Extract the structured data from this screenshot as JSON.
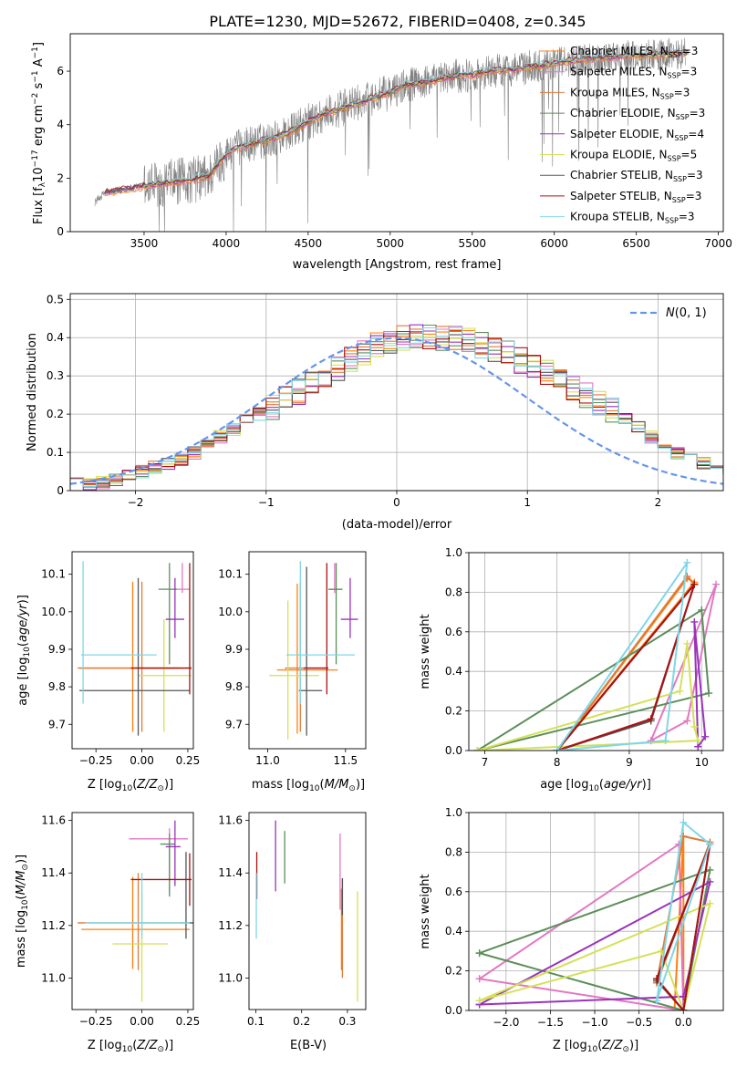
{
  "title": "PLATE=1230, MJD=52672, FIBERID=0408, z=0.345",
  "colors": {
    "data": "#808080",
    "normal_curve": "#6495ED",
    "grid": "#b0b0b0",
    "models": [
      "#ff7f0e",
      "#e377c2",
      "#e07b39",
      "#5b8f5b",
      "#9933bb",
      "#d4e157",
      "#555555",
      "#aa1111",
      "#7fd6e8"
    ]
  },
  "chart_data": [
    {
      "id": "spectrum",
      "type": "line",
      "xlabel": "wavelength [Angstrom, rest frame]",
      "ylabel": "Flux [f_λ10^{-17} erg cm^{-2} s^{-1} A^{-1}]",
      "xlim": [
        3050,
        7030
      ],
      "ylim": [
        0,
        7.4
      ],
      "xticks": [
        3500,
        4000,
        4500,
        5000,
        5500,
        6000,
        6500,
        7000
      ],
      "yticks": [
        0,
        2,
        4,
        6
      ],
      "grid": false,
      "legend": "top-right",
      "data_series": {
        "name": "data",
        "x_range": [
          3200,
          6800
        ]
      },
      "continuum": {
        "x": [
          3200,
          3260,
          3300,
          3400,
          3500,
          3600,
          3700,
          3800,
          3850,
          3900,
          3950,
          4000,
          4100,
          4200,
          4300,
          4400,
          4500,
          4600,
          4700,
          4800,
          4900,
          5000,
          5100,
          5200,
          5300,
          5400,
          5500,
          5600,
          5700,
          5800,
          5900,
          6000,
          6200,
          6400,
          6600,
          6800
        ],
        "y": [
          1.1,
          1.45,
          1.5,
          1.6,
          1.7,
          1.8,
          1.85,
          1.95,
          2.0,
          2.1,
          2.5,
          2.9,
          3.2,
          3.35,
          3.5,
          3.75,
          4.1,
          4.4,
          4.6,
          4.8,
          5.0,
          5.2,
          5.5,
          5.55,
          5.7,
          5.8,
          5.85,
          6.0,
          6.05,
          6.1,
          6.2,
          6.3,
          6.45,
          6.55,
          6.6,
          6.7
        ]
      },
      "series": [
        {
          "name": "Chabrier MILES",
          "n_ssp": "3"
        },
        {
          "name": "Salpeter MILES",
          "n_ssp": "3"
        },
        {
          "name": "Kroupa MILES",
          "n_ssp": "3"
        },
        {
          "name": "Chabrier ELODIE",
          "n_ssp": "3"
        },
        {
          "name": "Salpeter ELODIE",
          "n_ssp": "4"
        },
        {
          "name": "Kroupa ELODIE",
          "n_ssp": "5"
        },
        {
          "name": "Chabrier STELIB",
          "n_ssp": "3"
        },
        {
          "name": "Salpeter STELIB",
          "n_ssp": "3"
        },
        {
          "name": "Kroupa STELIB",
          "n_ssp": "3"
        }
      ]
    },
    {
      "id": "residuals",
      "type": "line",
      "xlabel": "(data-model)/error",
      "ylabel": "Normed distribution",
      "xlim": [
        -2.5,
        2.5
      ],
      "ylim": [
        0,
        0.515
      ],
      "xticks": [
        -2,
        -1,
        0,
        1,
        2
      ],
      "yticks": [
        0.0,
        0.1,
        0.2,
        0.3,
        0.4,
        0.5
      ],
      "grid": true,
      "legend": "top-right",
      "curve_label": "N(0,1)",
      "bin_width": 0.1,
      "hist_x_start": -2.5,
      "hist_base": [
        0.03,
        0.02,
        0.02,
        0.03,
        0.04,
        0.05,
        0.06,
        0.07,
        0.08,
        0.1,
        0.12,
        0.14,
        0.16,
        0.18,
        0.2,
        0.22,
        0.24,
        0.26,
        0.28,
        0.3,
        0.32,
        0.34,
        0.36,
        0.38,
        0.39,
        0.4,
        0.4,
        0.4,
        0.4,
        0.4,
        0.39,
        0.38,
        0.37,
        0.36,
        0.34,
        0.33,
        0.31,
        0.29,
        0.27,
        0.25,
        0.23,
        0.21,
        0.19,
        0.17,
        0.14,
        0.12,
        0.1,
        0.08,
        0.07,
        0.06,
        0.05,
        0.04,
        0.04,
        0.03,
        0.03,
        0.02,
        0.02
      ]
    },
    {
      "id": "age-vs-z",
      "type": "scatter",
      "xlabel": "Z [log10(Z/Z☉)]",
      "ylabel": "age  [log10(age/yr)]",
      "xlim": [
        -0.38,
        0.28
      ],
      "ylim": [
        9.635,
        10.16
      ],
      "xticks": [
        -0.25,
        0.0,
        0.25
      ],
      "yticks": [
        9.7,
        9.8,
        9.9,
        10.0,
        10.1
      ],
      "points": [
        {
          "x": -0.05,
          "y": 9.85,
          "xerr": [
            0.3,
            0.26
          ],
          "yerr": [
            0.17,
            0.23
          ]
        },
        {
          "x": 0.22,
          "y": 10.06,
          "xerr": [
            0.05,
            0.04
          ],
          "yerr": [
            0.01,
            0.07
          ]
        },
        {
          "x": 0.0,
          "y": 9.85,
          "xerr": [
            0.34,
            0.27
          ],
          "yerr": [
            0.17,
            0.23
          ]
        },
        {
          "x": 0.15,
          "y": 10.06,
          "xerr": [
            0.06,
            0.04
          ],
          "yerr": [
            0.2,
            0.07
          ]
        },
        {
          "x": 0.18,
          "y": 9.98,
          "xerr": [
            0.05,
            0.05
          ],
          "yerr": [
            0.05,
            0.11
          ]
        },
        {
          "x": 0.12,
          "y": 9.83,
          "xerr": [
            0.14,
            0.15
          ],
          "yerr": [
            0.15,
            0.15
          ]
        },
        {
          "x": -0.02,
          "y": 9.79,
          "xerr": [
            0.32,
            0.28
          ],
          "yerr": [
            0.12,
            0.3
          ]
        },
        {
          "x": 0.26,
          "y": 9.85,
          "xerr": [
            0.32,
            0.01
          ],
          "yerr": [
            0.07,
            0.28
          ]
        },
        {
          "x": -0.32,
          "y": 9.885,
          "xerr": [
            0.01,
            0.4
          ],
          "yerr": [
            0.13,
            0.25
          ]
        }
      ]
    },
    {
      "id": "age-vs-mass",
      "type": "scatter",
      "xlabel": "mass [log10(M/M☉)]",
      "xlim": [
        10.88,
        11.63
      ],
      "ylim": [
        9.635,
        10.16
      ],
      "xticks": [
        11.0,
        11.5
      ],
      "yticks": [
        9.7,
        9.8,
        9.9,
        10.0,
        10.1
      ],
      "points": [
        {
          "x": 11.19,
          "y": 9.845,
          "xerr": [
            0.13,
            0.26
          ],
          "yerr": [
            0.17,
            0.23
          ]
        },
        {
          "x": 11.43,
          "y": 10.06,
          "xerr": [
            0.04,
            0.05
          ],
          "yerr": [
            0.01,
            0.07
          ]
        },
        {
          "x": 11.21,
          "y": 9.85,
          "xerr": [
            0.1,
            0.18
          ],
          "yerr": [
            0.17,
            0.23
          ]
        },
        {
          "x": 11.44,
          "y": 10.06,
          "xerr": [
            0.05,
            0.04
          ],
          "yerr": [
            0.2,
            0.07
          ]
        },
        {
          "x": 11.53,
          "y": 9.98,
          "xerr": [
            0.06,
            0.05
          ],
          "yerr": [
            0.05,
            0.11
          ]
        },
        {
          "x": 11.13,
          "y": 9.83,
          "xerr": [
            0.12,
            0.2
          ],
          "yerr": [
            0.17,
            0.2
          ]
        },
        {
          "x": 11.25,
          "y": 9.79,
          "xerr": [
            0.05,
            0.1
          ],
          "yerr": [
            0.12,
            0.33
          ]
        },
        {
          "x": 11.38,
          "y": 9.85,
          "xerr": [
            0.15,
            0.01
          ],
          "yerr": [
            0.07,
            0.28
          ]
        },
        {
          "x": 11.21,
          "y": 9.885,
          "xerr": [
            0.09,
            0.35
          ],
          "yerr": [
            0.13,
            0.25
          ]
        }
      ]
    },
    {
      "id": "weight-vs-age",
      "type": "line",
      "xlabel": "age  [log10(age/yr)]",
      "ylabel": "mass weight",
      "xlim": [
        6.78,
        10.3
      ],
      "ylim": [
        0,
        1.0
      ],
      "xticks": [
        7,
        8,
        9,
        10
      ],
      "yticks": [
        0.0,
        0.2,
        0.4,
        0.6,
        0.8,
        1.0
      ],
      "grid": true,
      "series": [
        {
          "x": [
            8.0,
            9.8,
            9.9,
            8.0
          ],
          "y": [
            0.0,
            0.87,
            0.85,
            0.0
          ]
        },
        {
          "x": [
            9.3,
            9.8,
            10.2,
            9.3
          ],
          "y": [
            0.05,
            0.15,
            0.84,
            0.05
          ]
        },
        {
          "x": [
            8.0,
            9.8,
            9.9,
            8.0
          ],
          "y": [
            0.0,
            0.88,
            0.84,
            0.0
          ]
        },
        {
          "x": [
            6.9,
            10.0,
            10.1,
            6.9
          ],
          "y": [
            0.0,
            0.71,
            0.29,
            0.0
          ]
        },
        {
          "x": [
            9.95,
            10.05,
            9.9,
            9.95
          ],
          "y": [
            0.02,
            0.07,
            0.65,
            0.02
          ]
        },
        {
          "x": [
            6.9,
            9.7,
            9.8,
            9.9,
            9.95,
            6.9
          ],
          "y": [
            0.0,
            0.3,
            0.54,
            0.12,
            0.05,
            0.0
          ]
        },
        {
          "x": [
            8.0,
            9.3,
            9.9,
            8.0
          ],
          "y": [
            0.0,
            0.15,
            0.84,
            0.0
          ]
        },
        {
          "x": [
            8.0,
            9.3,
            9.9,
            8.0
          ],
          "y": [
            0.0,
            0.16,
            0.84,
            0.0
          ]
        },
        {
          "x": [
            8.0,
            9.5,
            9.8,
            8.0
          ],
          "y": [
            0.0,
            0.05,
            0.95,
            0.0
          ]
        }
      ]
    },
    {
      "id": "mass-vs-z",
      "type": "scatter",
      "xlabel": "Z [log10(Z/Z☉)]",
      "ylabel": "mass [log10(M/M☉)]",
      "xlim": [
        -0.38,
        0.28
      ],
      "ylim": [
        10.88,
        11.63
      ],
      "xticks": [
        -0.25,
        0.0,
        0.25
      ],
      "yticks": [
        11.0,
        11.2,
        11.4,
        11.6
      ],
      "points": [
        {
          "x": -0.05,
          "y": 11.185,
          "xerr": [
            0.28,
            0.31
          ],
          "yerr": [
            0.15,
            0.2
          ]
        },
        {
          "x": 0.15,
          "y": 11.53,
          "xerr": [
            0.22,
            0.1
          ],
          "yerr": [
            0.2,
            0.04
          ]
        },
        {
          "x": -0.02,
          "y": 11.21,
          "xerr": [
            0.33,
            0.24
          ],
          "yerr": [
            0.18,
            0.19
          ]
        },
        {
          "x": 0.15,
          "y": 11.51,
          "xerr": [
            0.05,
            0.03
          ],
          "yerr": [
            0.2,
            0.04
          ]
        },
        {
          "x": 0.18,
          "y": 11.5,
          "xerr": [
            0.05,
            0.03
          ],
          "yerr": [
            0.15,
            0.1
          ]
        },
        {
          "x": 0.0,
          "y": 11.13,
          "xerr": [
            0.16,
            0.14
          ],
          "yerr": [
            0.22,
            0.2
          ]
        },
        {
          "x": 0.24,
          "y": 11.21,
          "xerr": [
            0.03,
            0.04
          ],
          "yerr": [
            0.06,
            0.27
          ]
        },
        {
          "x": 0.26,
          "y": 11.375,
          "xerr": [
            0.32,
            0.01
          ],
          "yerr": [
            0.1,
            0.1
          ]
        },
        {
          "x": 0.0,
          "y": 11.21,
          "xerr": [
            0.31,
            0.26
          ],
          "yerr": [
            0.06,
            0.19
          ]
        }
      ]
    },
    {
      "id": "mass-vs-ebv",
      "type": "scatter",
      "xlabel": "E(B-V)",
      "xlim": [
        0.085,
        0.34
      ],
      "ylim": [
        10.88,
        11.63
      ],
      "xticks": [
        0.1,
        0.2,
        0.3
      ],
      "yticks": [
        11.0,
        11.2,
        11.4,
        11.6
      ],
      "points": [
        {
          "x": 0.287,
          "y": 11.18,
          "yerr": [
            0.15,
            0.16
          ]
        },
        {
          "x": 0.284,
          "y": 11.4,
          "yerr": [
            0.14,
            0.15
          ]
        },
        {
          "x": 0.289,
          "y": 11.2,
          "yerr": [
            0.2,
            0.18
          ]
        },
        {
          "x": 0.163,
          "y": 11.4,
          "yerr": [
            0.04,
            0.16
          ]
        },
        {
          "x": 0.143,
          "y": 11.5,
          "yerr": [
            0.17,
            0.1
          ]
        },
        {
          "x": 0.322,
          "y": 11.13,
          "yerr": [
            0.22,
            0.2
          ]
        },
        {
          "x": 0.289,
          "y": 11.3,
          "yerr": [
            0.06,
            0.08
          ]
        },
        {
          "x": 0.102,
          "y": 11.38,
          "yerr": [
            0.08,
            0.1
          ]
        },
        {
          "x": 0.101,
          "y": 11.26,
          "yerr": [
            0.11,
            0.14
          ]
        }
      ]
    },
    {
      "id": "weight-vs-z",
      "type": "line",
      "xlabel": "Z [log10(Z/Z☉)]",
      "ylabel": "mass weight",
      "xlim": [
        -2.42,
        0.45
      ],
      "ylim": [
        0,
        1.0
      ],
      "xticks": [
        -2.0,
        -1.5,
        -1.0,
        -0.5,
        0.0
      ],
      "yticks": [
        0.0,
        0.2,
        0.4,
        0.6,
        0.8,
        1.0
      ],
      "grid": true,
      "series": [
        {
          "x": [
            0.0,
            0.0,
            -0.1,
            0.0
          ],
          "y": [
            0.88,
            0.0,
            0.0,
            0.88
          ]
        },
        {
          "x": [
            -2.3,
            -0.05,
            0.0,
            -2.3
          ],
          "y": [
            0.16,
            0.84,
            0.0,
            0.16
          ]
        },
        {
          "x": [
            -0.3,
            0.0,
            0.3,
            -0.3
          ],
          "y": [
            0.14,
            0.88,
            0.85,
            0.14
          ]
        },
        {
          "x": [
            -2.3,
            0.0,
            0.3,
            -2.3
          ],
          "y": [
            0.29,
            0.0,
            0.71,
            0.29
          ]
        },
        {
          "x": [
            -2.3,
            0.0,
            0.3,
            -2.3
          ],
          "y": [
            0.03,
            0.07,
            0.65,
            0.03
          ]
        },
        {
          "x": [
            -2.3,
            -0.25,
            0.0,
            0.3,
            -2.3
          ],
          "y": [
            0.05,
            0.3,
            0.0,
            0.54,
            0.05
          ]
        },
        {
          "x": [
            -0.3,
            0.0,
            0.3,
            -0.3
          ],
          "y": [
            0.15,
            0.0,
            0.84,
            0.15
          ]
        },
        {
          "x": [
            -0.3,
            0.0,
            0.3,
            -0.3
          ],
          "y": [
            0.16,
            0.0,
            0.84,
            0.16
          ]
        },
        {
          "x": [
            -0.3,
            0.0,
            0.3,
            -0.3
          ],
          "y": [
            0.05,
            0.95,
            0.84,
            0.05
          ]
        }
      ]
    }
  ]
}
